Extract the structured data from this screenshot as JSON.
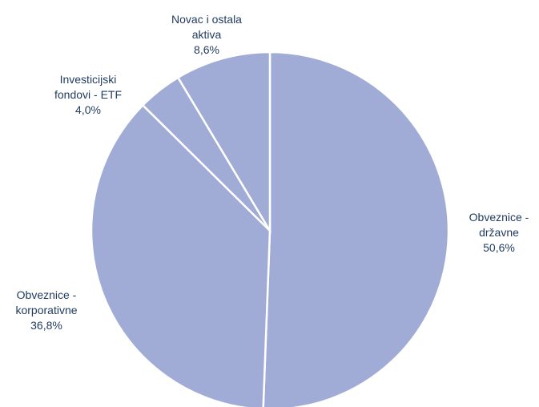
{
  "chart_data": {
    "type": "pie",
    "title": "",
    "slices": [
      {
        "name": "Obveznice - državne",
        "line1": "Obveznice -",
        "line2": "državne",
        "value": 50.6,
        "label": "50,6%"
      },
      {
        "name": "Obveznice - korporativne",
        "line1": "Obveznice -",
        "line2": "korporativne",
        "value": 36.8,
        "label": "36,8%"
      },
      {
        "name": "Investicijski fondovi - ETF",
        "line1": "Investicijski",
        "line2": "fondovi - ETF",
        "value": 4.0,
        "label": "4,0%"
      },
      {
        "name": "Novac i ostala aktiva",
        "line1": "Novac i ostala",
        "line2": "aktiva",
        "value": 8.6,
        "label": "8,6%"
      }
    ],
    "colors": {
      "slice_fill": "#A0ACD6",
      "slice_border": "#FFFFFF",
      "label_text": "#1F3A5F"
    },
    "legend": "none"
  }
}
